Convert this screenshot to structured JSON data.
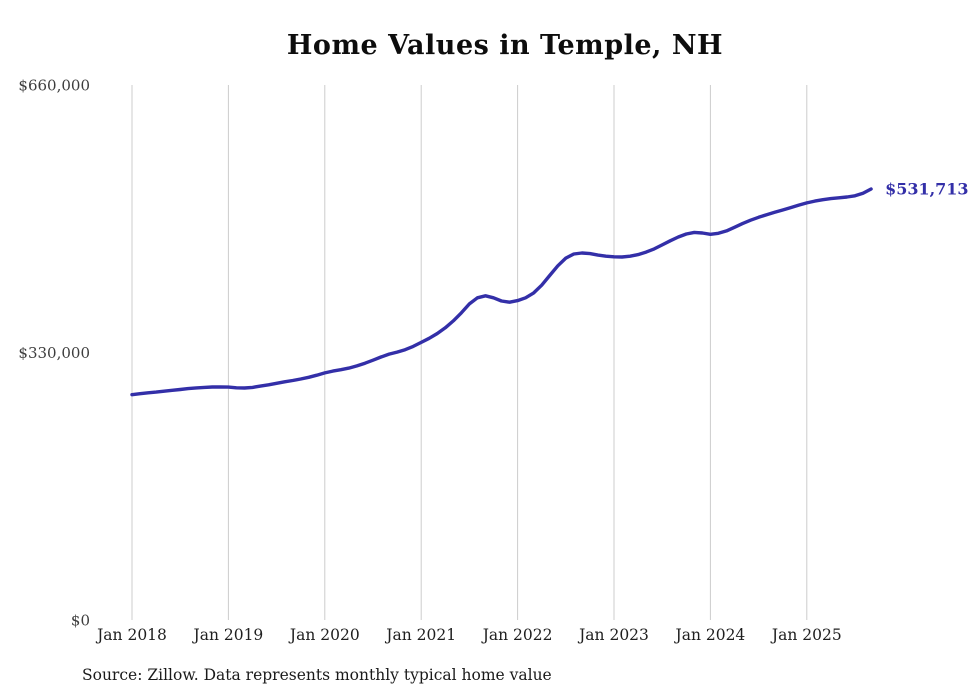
{
  "chart_data": {
    "type": "line",
    "title": "Home Values in Temple, NH",
    "source": "Source: Zillow. Data represents monthly typical home value",
    "series_name": "Monthly typical home value",
    "line_color": "#332fa8",
    "grid_color": "#cccccc",
    "end_label": "$531,713",
    "last_value": 531713,
    "ylim": [
      0,
      660000
    ],
    "y_ticks": [
      {
        "label": "$0",
        "value": 0
      },
      {
        "label": "$330,000",
        "value": 330000
      },
      {
        "label": "$660,000",
        "value": 660000
      }
    ],
    "x_tick_labels": [
      "Jan 2018",
      "Jan 2019",
      "Jan 2020",
      "Jan 2021",
      "Jan 2022",
      "Jan 2023",
      "Jan 2024",
      "Jan 2025"
    ],
    "x_monthly_range": [
      "Jan 2018",
      "Sep 2025"
    ],
    "values": [
      278000,
      279200,
      280300,
      281200,
      282300,
      283400,
      284400,
      285500,
      286300,
      287000,
      287400,
      287600,
      287300,
      286400,
      286200,
      287000,
      288500,
      290200,
      292000,
      293800,
      295500,
      297300,
      299400,
      302000,
      304800,
      307000,
      308800,
      310800,
      313500,
      316800,
      320500,
      324500,
      328000,
      330500,
      333500,
      337500,
      342500,
      347500,
      353500,
      360500,
      369000,
      379000,
      390000,
      397500,
      400000,
      397500,
      393500,
      392000,
      394000,
      397500,
      403500,
      413000,
      425000,
      437000,
      446500,
      451500,
      452800,
      452000,
      450200,
      448800,
      448000,
      447800,
      448800,
      450800,
      453800,
      457800,
      462800,
      467800,
      472500,
      476200,
      478200,
      477400,
      475800,
      477000,
      480000,
      484500,
      489000,
      493200,
      496800,
      500000,
      503000,
      505800,
      508800,
      511800,
      514500,
      516800,
      518500,
      519800,
      520800,
      521800,
      523300,
      526500,
      531713
    ]
  }
}
